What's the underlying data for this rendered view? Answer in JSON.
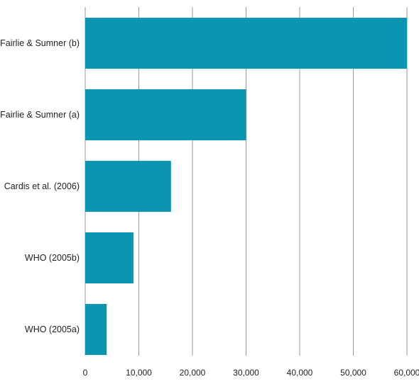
{
  "chart_data": {
    "type": "bar",
    "orientation": "horizontal",
    "categories": [
      "Fairlie & Sumner (b)",
      "Fairlie & Sumner (a)",
      "Cardis et al. (2006)",
      "WHO (2005b)",
      "WHO (2005a)"
    ],
    "values": [
      60000,
      30000,
      16000,
      9000,
      4000
    ],
    "xlim": [
      0,
      60000
    ],
    "x_ticks": [
      0,
      10000,
      20000,
      30000,
      40000,
      50000,
      60000
    ],
    "x_tick_labels": [
      "0",
      "10,000",
      "20,000",
      "30,000",
      "40,000",
      "50,000",
      "60,000"
    ],
    "title": "",
    "xlabel": "",
    "ylabel": "",
    "grid": "vertical",
    "legend": "none",
    "colors": {
      "bar": "#0a96b0",
      "grid": "#9a9a9a",
      "text": "#222222"
    }
  }
}
